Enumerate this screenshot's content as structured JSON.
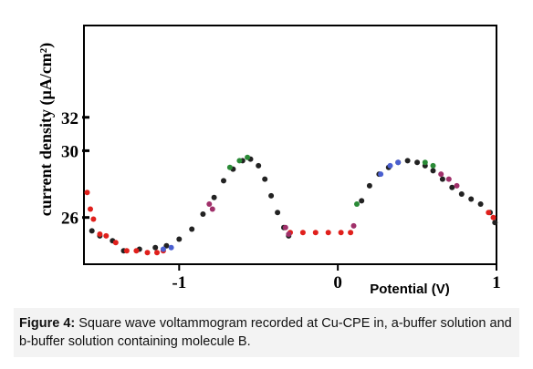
{
  "caption": {
    "label": "Figure 4:",
    "text": " Square wave voltammogram recorded at Cu-CPE in, a-buffer solution and b-buffer solution containing molecule B."
  },
  "chart_data": {
    "type": "scatter",
    "ylabel": "current density  (µA/cm²)",
    "xlabel": "Potential (V)",
    "xlim": [
      -1.6,
      1.0
    ],
    "ylim": [
      23.2,
      37.5
    ],
    "xticks": [
      {
        "value": -1,
        "label": "-1"
      },
      {
        "value": 0,
        "label": "0"
      },
      {
        "value": 1,
        "label": "1"
      }
    ],
    "yticks": [
      {
        "value": 26,
        "label": "26"
      },
      {
        "value": 30,
        "label": "30"
      },
      {
        "value": 32,
        "label": "32"
      }
    ],
    "colors": {
      "black": "#222222",
      "red": "#e0201c",
      "green": "#2a8a36",
      "blue": "#4a5fd0",
      "magenta": "#a0306a"
    },
    "series": [
      {
        "color": "black",
        "x": [
          -1.55,
          -1.5,
          -1.42,
          -1.35,
          -1.25,
          -1.15,
          -1.08,
          -1.0,
          -0.92,
          -0.85,
          -0.78,
          -0.72,
          -0.66,
          -0.6,
          -0.55,
          -0.5,
          -0.46,
          -0.42,
          -0.38,
          -0.34,
          -0.31,
          0.15,
          0.2,
          0.26,
          0.32,
          0.38,
          0.44,
          0.5,
          0.55,
          0.6,
          0.66,
          0.72,
          0.78,
          0.84,
          0.9,
          0.96,
          0.99
        ],
        "y": [
          25.2,
          24.9,
          24.6,
          24.0,
          24.1,
          24.2,
          24.3,
          24.7,
          25.3,
          26.2,
          27.2,
          28.2,
          28.9,
          29.4,
          29.5,
          29.1,
          28.3,
          27.3,
          26.3,
          25.4,
          24.9,
          27.0,
          27.9,
          28.6,
          29.0,
          29.3,
          29.4,
          29.3,
          29.1,
          28.8,
          28.3,
          27.8,
          27.4,
          27.1,
          26.8,
          26.3,
          25.7
        ]
      },
      {
        "color": "red",
        "x": [
          -1.58,
          -1.56,
          -1.54,
          -1.5,
          -1.46,
          -1.4,
          -1.33,
          -1.27,
          -1.2,
          -1.14,
          -1.1,
          -0.3,
          -0.22,
          -0.14,
          -0.06,
          0.02,
          0.08,
          0.95,
          0.98
        ],
        "y": [
          27.5,
          26.5,
          25.9,
          25.0,
          24.9,
          24.5,
          24.0,
          24.0,
          23.9,
          23.9,
          24.0,
          25.1,
          25.1,
          25.1,
          25.1,
          25.1,
          25.1,
          26.3,
          26.0
        ]
      },
      {
        "color": "green",
        "x": [
          -0.68,
          -0.62,
          -0.57,
          0.12,
          0.55,
          0.6
        ],
        "y": [
          29.0,
          29.4,
          29.6,
          26.8,
          29.3,
          29.1
        ]
      },
      {
        "color": "blue",
        "x": [
          -1.1,
          -1.05,
          0.27,
          0.33,
          0.38
        ],
        "y": [
          24.1,
          24.2,
          28.6,
          29.1,
          29.3
        ]
      },
      {
        "color": "magenta",
        "x": [
          -0.81,
          -0.79,
          -0.33,
          -0.31,
          0.1,
          0.65,
          0.7,
          0.75
        ],
        "y": [
          26.8,
          26.5,
          25.4,
          25.0,
          25.5,
          28.6,
          28.3,
          27.9
        ]
      }
    ]
  }
}
